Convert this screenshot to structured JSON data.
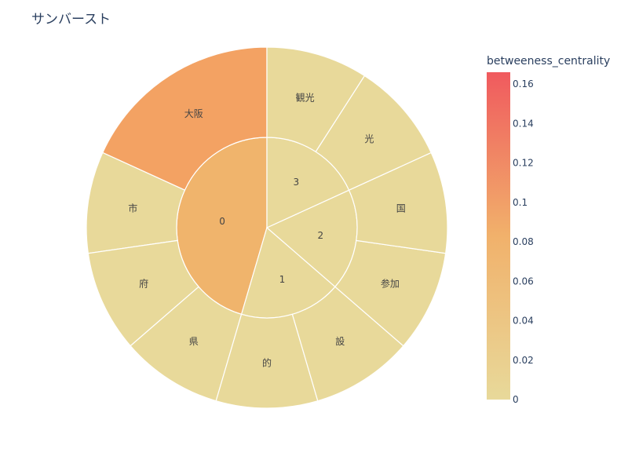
{
  "chart_data": {
    "type": "sunburst",
    "title": "サンバースト",
    "colorbar": {
      "title": "betweeness_centrality",
      "range": [
        0,
        0.166
      ],
      "ticks": [
        "0",
        "0.02",
        "0.04",
        "0.06",
        "0.08",
        "0.1",
        "0.12",
        "0.14",
        "0.16"
      ],
      "tick_values": [
        0,
        0.02,
        0.04,
        0.06,
        0.08,
        0.1,
        0.12,
        0.14,
        0.16
      ],
      "colors": [
        "#e8d99a",
        "#f0b46c",
        "#f6905a",
        "#f05a5e"
      ]
    },
    "nodes": [
      {
        "id": "0",
        "label": "0",
        "parent": "",
        "value": 5,
        "color": 0.055
      },
      {
        "id": "1",
        "label": "1",
        "parent": "",
        "value": 2,
        "color": 0.0
      },
      {
        "id": "2",
        "label": "2",
        "parent": "",
        "value": 2,
        "color": 0.0
      },
      {
        "id": "3",
        "label": "3",
        "parent": "",
        "value": 2,
        "color": 0.0
      },
      {
        "id": "0a",
        "label": "大阪",
        "parent": "0",
        "value": 2,
        "color": 0.083
      },
      {
        "id": "0b",
        "label": "市",
        "parent": "0",
        "value": 1,
        "color": 0.0
      },
      {
        "id": "0c",
        "label": "府",
        "parent": "0",
        "value": 1,
        "color": 0.0
      },
      {
        "id": "0d",
        "label": "県",
        "parent": "0",
        "value": 1,
        "color": 0.0
      },
      {
        "id": "1a",
        "label": "的",
        "parent": "1",
        "value": 1,
        "color": 0.0
      },
      {
        "id": "1b",
        "label": "設",
        "parent": "1",
        "value": 1,
        "color": 0.0
      },
      {
        "id": "2a",
        "label": "参加",
        "parent": "2",
        "value": 1,
        "color": 0.0
      },
      {
        "id": "2b",
        "label": "国",
        "parent": "2",
        "value": 1,
        "color": 0.0
      },
      {
        "id": "3a",
        "label": "光",
        "parent": "3",
        "value": 1,
        "color": 0.0
      },
      {
        "id": "3b",
        "label": "観光",
        "parent": "3",
        "value": 1,
        "color": 0.0
      }
    ]
  }
}
